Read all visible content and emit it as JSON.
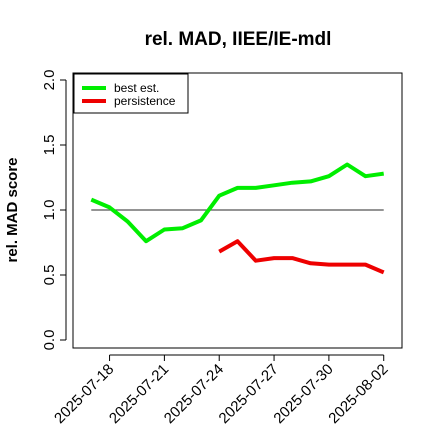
{
  "chart_data": {
    "type": "line",
    "title": "rel. MAD, IIEE/IE-mdl",
    "ylabel": "rel. MAD score",
    "xlabel": "",
    "ylim": [
      0,
      2.0
    ],
    "xlim": [
      "2025-07-16",
      "2025-08-03"
    ],
    "yticks": [
      "0.0",
      "0.5",
      "1.0",
      "1.5",
      "2.0"
    ],
    "xticks": [
      "2025-07-18",
      "2025-07-21",
      "2025-07-24",
      "2025-07-27",
      "2025-07-30",
      "2025-08-02"
    ],
    "reference_line": 1.0,
    "legend": {
      "position": "top-left",
      "entries": [
        "best est.",
        "persistence"
      ]
    },
    "series": [
      {
        "name": "best est.",
        "color": "#00ee00",
        "x": [
          "2025-07-17",
          "2025-07-18",
          "2025-07-19",
          "2025-07-20",
          "2025-07-21",
          "2025-07-22",
          "2025-07-23",
          "2025-07-24",
          "2025-07-25",
          "2025-07-26",
          "2025-07-27",
          "2025-07-28",
          "2025-07-29",
          "2025-07-30",
          "2025-07-31",
          "2025-08-01",
          "2025-08-02"
        ],
        "values": [
          1.08,
          1.02,
          0.91,
          0.76,
          0.85,
          0.86,
          0.92,
          1.11,
          1.17,
          1.17,
          1.19,
          1.21,
          1.22,
          1.26,
          1.35,
          1.26,
          1.28
        ]
      },
      {
        "name": "persistence",
        "color": "#ee0000",
        "x": [
          "2025-07-24",
          "2025-07-25",
          "2025-07-26",
          "2025-07-27",
          "2025-07-28",
          "2025-07-29",
          "2025-07-30",
          "2025-07-31",
          "2025-08-01",
          "2025-08-02"
        ],
        "values": [
          0.68,
          0.76,
          0.61,
          0.63,
          0.63,
          0.59,
          0.58,
          0.58,
          0.58,
          0.52
        ]
      }
    ]
  }
}
